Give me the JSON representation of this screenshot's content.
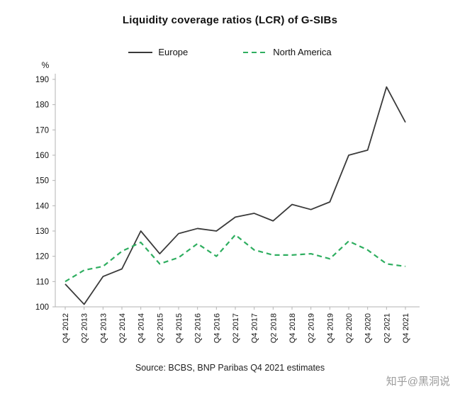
{
  "chart_data": {
    "type": "line",
    "title": "Liquidity coverage ratios (LCR) of G-SIBs",
    "ylabel": "%",
    "ylim": [
      100,
      190
    ],
    "ytick_step": 10,
    "grid": false,
    "legend_position": "top",
    "categories": [
      "Q4 2012",
      "Q2 2013",
      "Q4 2013",
      "Q2 2014",
      "Q4 2014",
      "Q2 2015",
      "Q4 2015",
      "Q2 2016",
      "Q4 2016",
      "Q2 2017",
      "Q4 2017",
      "Q2 2018",
      "Q4 2018",
      "Q2 2019",
      "Q4 2019",
      "Q2 2020",
      "Q4 2020",
      "Q2 2021",
      "Q4 2021"
    ],
    "series": [
      {
        "name": "Europe",
        "color": "#3a3a3a",
        "dash": false,
        "values": [
          109,
          101,
          112,
          115,
          130,
          121,
          129,
          131,
          130,
          135.5,
          137,
          134,
          140.5,
          138.5,
          141.5,
          160,
          162,
          187,
          173
        ]
      },
      {
        "name": "North America",
        "color": "#2fae60",
        "dash": true,
        "values": [
          110,
          114.5,
          116,
          122,
          125.5,
          117,
          119.5,
          125,
          120,
          128.5,
          122.5,
          120.5,
          120.5,
          121,
          119,
          126,
          122.5,
          117,
          116
        ]
      }
    ]
  },
  "footer": {
    "source": "Source: BCBS, BNP Paribas Q4 2021 estimates",
    "watermark": "知乎@黑洞说"
  }
}
